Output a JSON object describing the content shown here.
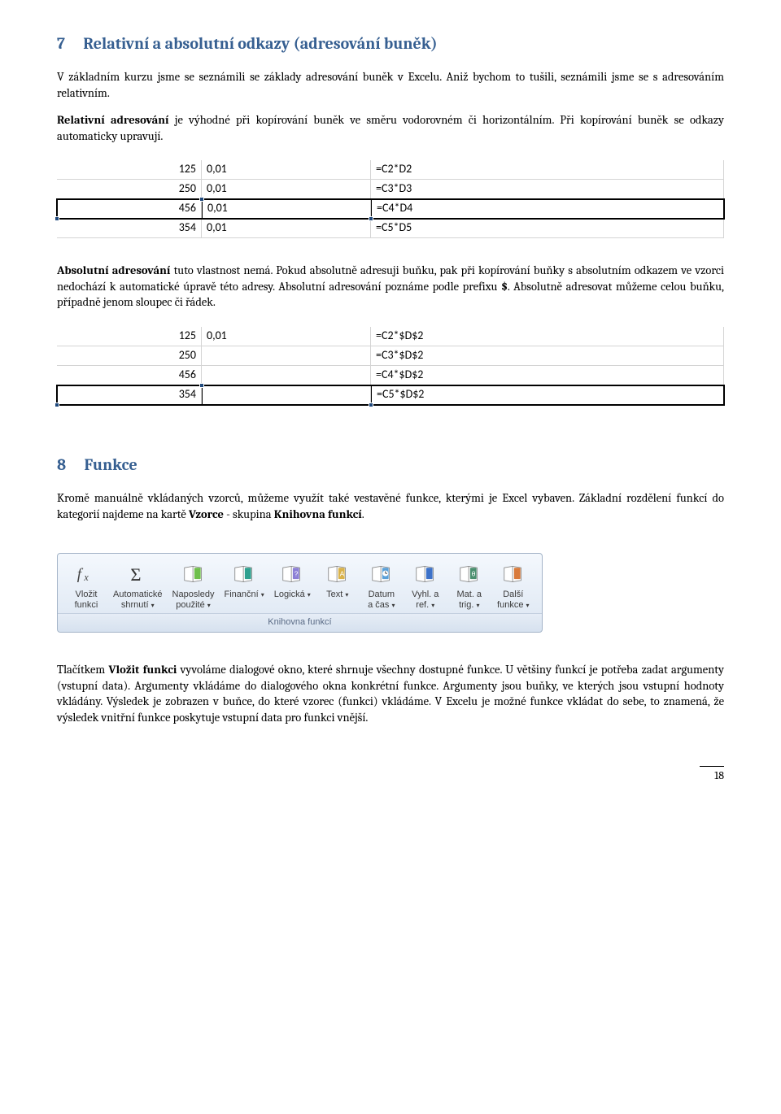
{
  "section7": {
    "num": "7",
    "title": "Relativní a absolutní odkazy (adresování buněk)",
    "p1": "V základním kurzu jsme se seznámili se základy adresování buněk v Excelu. Aniž bychom to tušili, seznámili jsme se s adresováním relativním.",
    "p2a": "Relativní adresování",
    "p2b": " je výhodné při kopírování buněk ve směru vodorovném či horizontálním. Při kopírování buněk se odkazy automaticky upravují.",
    "table1": {
      "rows": [
        {
          "a": "125",
          "b": "0,01",
          "c": "=C2*D2"
        },
        {
          "a": "250",
          "b": "0,01",
          "c": "=C3*D3"
        },
        {
          "a": "456",
          "b": "0,01",
          "c": "=C4*D4",
          "selected": true
        },
        {
          "a": "354",
          "b": "0,01",
          "c": "=C5*D5"
        }
      ]
    },
    "p3a": "Absolutní adresování",
    "p3b": " tuto vlastnost nemá. Pokud absolutně adresuji buňku, pak při kopírování buňky s absolutním odkazem ve vzorci nedochází k automatické úpravě této adresy. Absolutní adresování poznáme podle prefixu ",
    "p3c": "$",
    "p3d": ". Absolutně adresovat můžeme celou buňku, případně jenom sloupec či řádek.",
    "table2": {
      "rows": [
        {
          "a": "125",
          "b": "0,01",
          "c": "=C2*$D$2"
        },
        {
          "a": "250",
          "b": "",
          "c": "=C3*$D$2"
        },
        {
          "a": "456",
          "b": "",
          "c": "=C4*$D$2"
        },
        {
          "a": "354",
          "b": "",
          "c": "=C5*$D$2",
          "selected": true
        }
      ]
    }
  },
  "section8": {
    "num": "8",
    "title": "Funkce",
    "p1a": "Kromě manuálně vkládaných vzorců, můžeme využít také vestavěné funkce, kterými je Excel vybaven. Základní rozdělení funkcí do kategorií najdeme na kartě ",
    "p1b": "Vzorce",
    "p1c": " - skupina ",
    "p1d": "Knihovna funkcí",
    "p1e": ".",
    "ribbon": {
      "caption": "Knihovna funkcí",
      "buttons": [
        {
          "label": "Vložit\nfunkci",
          "name": "insert-function",
          "icon": "fx",
          "dd": false
        },
        {
          "label": "Automatické\nshrnutí",
          "name": "autosum",
          "icon": "sigma",
          "dd": true
        },
        {
          "label": "Naposledy\npoužité",
          "name": "recent",
          "icon": "book-green",
          "dd": true
        },
        {
          "label": "Finanční",
          "name": "financial",
          "icon": "book-teal",
          "dd": true
        },
        {
          "label": "Logická",
          "name": "logical",
          "icon": "book-q",
          "dd": true
        },
        {
          "label": "Text",
          "name": "text",
          "icon": "book-a",
          "dd": true
        },
        {
          "label": "Datum\na čas",
          "name": "datetime",
          "icon": "book-clock",
          "dd": true
        },
        {
          "label": "Vyhl. a\nref.",
          "name": "lookup",
          "icon": "book-blue",
          "dd": true
        },
        {
          "label": "Mat. a\ntrig.",
          "name": "math",
          "icon": "book-theta",
          "dd": true
        },
        {
          "label": "Další\nfunkce",
          "name": "more",
          "icon": "book-orange",
          "dd": true
        }
      ]
    },
    "p2a": "Tlačítkem ",
    "p2b": "Vložit funkci",
    "p2c": " vyvoláme dialogové okno, které shrnuje všechny dostupné funkce. U většiny funkcí je potřeba zadat argumenty (vstupní data). Argumenty vkládáme do dialogového okna konkrétní funkce. Argumenty jsou buňky, ve kterých jsou vstupní hodnoty vkládány. Výsledek je zobrazen v buňce, do které vzorec (funkci) vkládáme. V Excelu je možné funkce vkládat do sebe, to znamená, že výsledek vnitřní funkce poskytuje vstupní data pro funkci vnější."
  },
  "pagenum": "18",
  "colors": {
    "heading": "#365f91",
    "grid": "#d4d4d4",
    "handle": "#1f497d"
  }
}
